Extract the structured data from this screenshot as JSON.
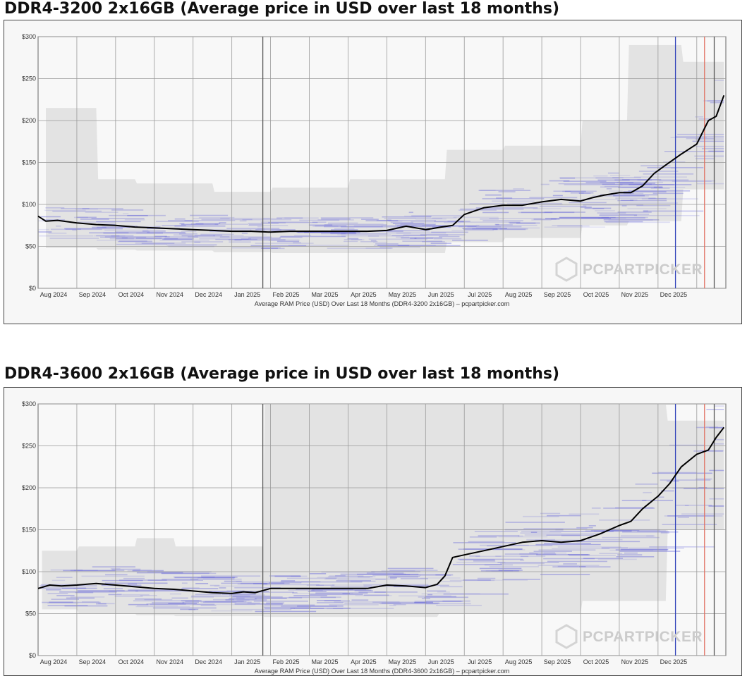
{
  "chart_data": [
    {
      "type": "line",
      "title": "DDR4-3200 2x16GB (Average price in USD over last 18 months)",
      "xlabel": "Average RAM Price (USD) Over Last 18 Months (DDR4-3200 2x16GB) – pcpartpicker.com",
      "ylabel": "",
      "ylim": [
        0,
        300
      ],
      "y_ticks": [
        "$0",
        "$50",
        "$100",
        "$150",
        "$200",
        "$250",
        "$300"
      ],
      "y_tick_values": [
        0,
        50,
        100,
        150,
        200,
        250,
        300
      ],
      "x_range": [
        0,
        17.75
      ],
      "x_ticks": [
        "Aug 2024",
        "Sep 2024",
        "Oct 2024",
        "Nov 2024",
        "Dec 2024",
        "Jan 2025",
        "Feb 2025",
        "Mar 2025",
        "Apr 2025",
        "May 2025",
        "Jun 2025",
        "Jul 2025",
        "Aug 2025",
        "Sep 2025",
        "Oct 2025",
        "Nov 2025",
        "Dec 2025"
      ],
      "grid": true,
      "watermark": "PCPARTPICKER",
      "series": [
        {
          "name": "Average price",
          "x": [
            0,
            0.2,
            0.5,
            1,
            1.5,
            2,
            2.5,
            3,
            3.5,
            4,
            4.5,
            5,
            5.5,
            6,
            6.5,
            7,
            7.5,
            8,
            8.5,
            9,
            9.5,
            10,
            10.15,
            10.4,
            10.7,
            11,
            11.5,
            12,
            12.5,
            13,
            13.5,
            14,
            14.3,
            14.6,
            15,
            15.3,
            15.6,
            15.9,
            16.2,
            16.6,
            17,
            17.3,
            17.5,
            17.7
          ],
          "values": [
            86,
            80,
            81,
            78,
            76,
            75,
            73,
            72,
            71,
            70,
            69,
            68,
            68,
            67,
            68,
            68,
            68,
            68,
            68,
            69,
            74,
            70,
            71,
            73,
            75,
            88,
            96,
            99,
            99,
            103,
            106,
            104,
            108,
            111,
            114,
            114,
            122,
            137,
            147,
            160,
            172,
            200,
            205,
            230
          ]
        }
      ],
      "range_band": {
        "x": [
          0.2,
          1.5,
          1.55,
          2.5,
          2.55,
          4.5,
          4.55,
          6,
          6.05,
          8,
          8.05,
          10.5,
          10.55,
          12,
          12.05,
          14,
          14.05,
          15.2,
          15.25,
          16.6,
          16.65,
          17.7
        ],
        "upper": [
          215,
          215,
          130,
          130,
          125,
          125,
          115,
          115,
          120,
          120,
          130,
          130,
          165,
          165,
          170,
          170,
          200,
          200,
          290,
          290,
          270,
          270
        ],
        "lower": [
          48,
          48,
          46,
          46,
          45,
          45,
          43,
          43,
          42,
          42,
          42,
          42,
          55,
          55,
          60,
          60,
          75,
          75,
          80,
          80,
          118,
          118
        ]
      },
      "markers": [
        {
          "x": 5.8,
          "color": "#555555"
        },
        {
          "x": 16.45,
          "color": "#3344bb"
        },
        {
          "x": 17.2,
          "color": "#e07060"
        },
        {
          "x": 17.45,
          "color": "#555555"
        }
      ]
    },
    {
      "type": "line",
      "title": "DDR4-3600 2x16GB (Average price in USD over last 18 months)",
      "xlabel": "Average RAM Price (USD) Over Last 18 Months (DDR4-3600 2x16GB) – pcpartpicker.com",
      "ylabel": "",
      "ylim": [
        0,
        300
      ],
      "y_ticks": [
        "$0",
        "$50",
        "$100",
        "$150",
        "$200",
        "$250",
        "$300"
      ],
      "y_tick_values": [
        0,
        50,
        100,
        150,
        200,
        250,
        300
      ],
      "x_range": [
        0,
        17.75
      ],
      "x_ticks": [
        "Aug 2024",
        "Sep 2024",
        "Oct 2024",
        "Nov 2024",
        "Dec 2024",
        "Jan 2025",
        "Feb 2025",
        "Mar 2025",
        "Apr 2025",
        "May 2025",
        "Jun 2025",
        "Jul 2025",
        "Aug 2025",
        "Sep 2025",
        "Oct 2025",
        "Nov 2025",
        "Dec 2025"
      ],
      "grid": true,
      "watermark": "PCPARTPICKER",
      "series": [
        {
          "name": "Average price",
          "x": [
            0,
            0.3,
            0.6,
            1,
            1.5,
            2,
            2.5,
            3,
            3.5,
            4,
            4.5,
            5,
            5.3,
            5.6,
            6,
            6.5,
            7,
            7.5,
            8,
            8.5,
            9,
            9.5,
            10,
            10.3,
            10.5,
            10.7,
            11,
            11.5,
            12,
            12.5,
            13,
            13.5,
            14,
            14.5,
            15,
            15.3,
            15.6,
            16,
            16.3,
            16.6,
            17,
            17.3,
            17.5,
            17.7
          ],
          "values": [
            80,
            84,
            83,
            84,
            86,
            84,
            82,
            80,
            79,
            77,
            75,
            74,
            76,
            75,
            80,
            80,
            80,
            80,
            80,
            80,
            84,
            83,
            81,
            85,
            95,
            117,
            120,
            125,
            130,
            135,
            137,
            135,
            137,
            145,
            155,
            160,
            175,
            190,
            205,
            225,
            240,
            245,
            260,
            272
          ]
        }
      ],
      "range_band": {
        "x": [
          0.1,
          1.0,
          1.05,
          2.5,
          2.55,
          3.5,
          3.55,
          5.8,
          5.85,
          10.3,
          10.35,
          14,
          14.05,
          16.2,
          16.25,
          17.7
        ],
        "upper": [
          125,
          125,
          130,
          130,
          140,
          140,
          130,
          130,
          300,
          300,
          300,
          300,
          300,
          300,
          280,
          280
        ],
        "lower": [
          55,
          55,
          50,
          50,
          48,
          48,
          47,
          47,
          46,
          46,
          50,
          50,
          65,
          65,
          150,
          150
        ]
      },
      "markers": [
        {
          "x": 5.8,
          "color": "#555555"
        },
        {
          "x": 16.45,
          "color": "#3344bb"
        },
        {
          "x": 17.2,
          "color": "#e07060"
        },
        {
          "x": 17.45,
          "color": "#555555"
        }
      ]
    }
  ]
}
